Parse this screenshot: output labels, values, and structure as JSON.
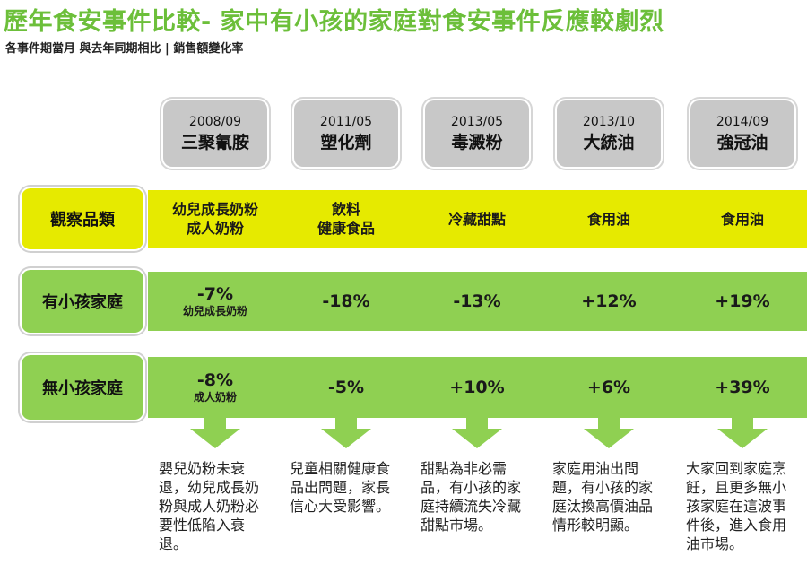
{
  "title": "歷年食安事件比較- 家中有小孩的家庭對食安事件反應較劇烈",
  "subtitle": "各事件期當月 與去年同期相比 | 銷售額變化率",
  "row_labels": {
    "category": "觀察品類",
    "with_kids": "有小孩家庭",
    "without_kids": "無小孩家庭"
  },
  "events": [
    {
      "date": "2008/09",
      "name": "三聚氰胺",
      "category": "幼兒成長奶粉\n成人奶粉",
      "with_kids": "-7%",
      "with_kids_note": "幼兒成長奶粉",
      "without_kids": "-8%",
      "without_kids_note": "成人奶粉",
      "note": "嬰兒奶粉未衰退，幼兒成長奶粉與成人奶粉必要性低陷入衰退。"
    },
    {
      "date": "2011/05",
      "name": "塑化劑",
      "category": "飲料\n健康食品",
      "with_kids": "-18%",
      "with_kids_note": "",
      "without_kids": "-5%",
      "without_kids_note": "",
      "note": "兒童相關健康食品出問題，家長信心大受影響。"
    },
    {
      "date": "2013/05",
      "name": "毒澱粉",
      "category": "冷藏甜點",
      "with_kids": "-13%",
      "with_kids_note": "",
      "without_kids": "+10%",
      "without_kids_note": "",
      "note": "甜點為非必需品，有小孩的家庭持續流失冷藏甜點市場。"
    },
    {
      "date": "2013/10",
      "name": "大統油",
      "category": "食用油",
      "with_kids": "+12%",
      "with_kids_note": "",
      "without_kids": "+6%",
      "without_kids_note": "",
      "note": "家庭用油出問題，有小孩的家庭汰換高價油品情形較明顯。"
    },
    {
      "date": "2014/09",
      "name": "強冠油",
      "category": "食用油",
      "with_kids": "+19%",
      "with_kids_note": "",
      "without_kids": "+39%",
      "without_kids_note": "",
      "note": "大家回到家庭烹飪，且更多無小孩家庭在這波事件後，進入食用油市場。"
    }
  ],
  "colors": {
    "title_green": "#6cbf3a",
    "band_yellow": "#e6ea00",
    "band_green": "#8fd052",
    "event_box": "#c8c8c8",
    "arrow": "#8fd052"
  }
}
